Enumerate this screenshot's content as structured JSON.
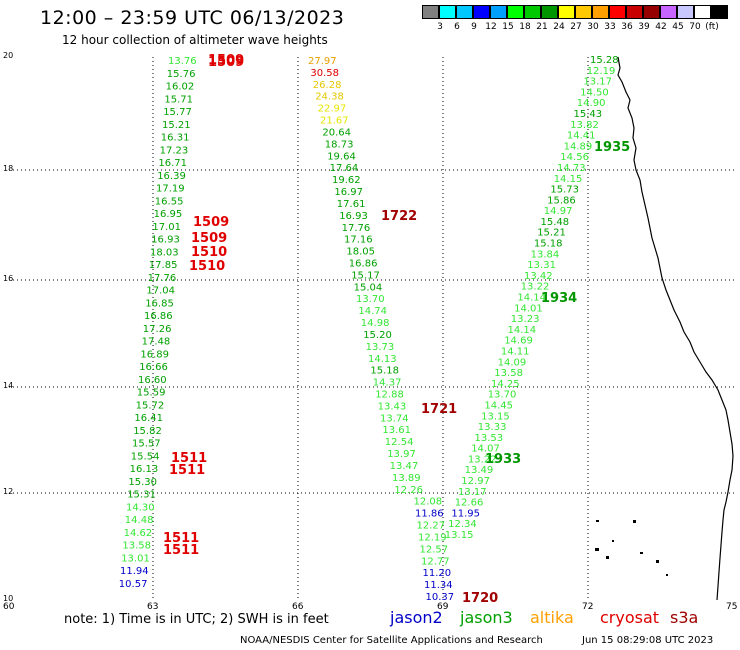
{
  "header": {
    "title": "12:00 – 23:59 UTC 06/13/2023",
    "subtitle": "12 hour collection of altimeter wave heights"
  },
  "legend": {
    "colors": [
      "#808080",
      "#00ffff",
      "#00c8ff",
      "#0000ff",
      "#00a0ff",
      "#00ff00",
      "#00c800",
      "#009600",
      "#ffff00",
      "#ffc800",
      "#ffa000",
      "#ff0000",
      "#c80000",
      "#960000",
      "#c864ff",
      "#c8c8ff",
      "#ffffff",
      "#000000"
    ],
    "labels": [
      "3",
      "6",
      "9",
      "12",
      "15",
      "18",
      "21",
      "24",
      "27",
      "30",
      "33",
      "36",
      "39",
      "42",
      "45",
      "70",
      "(ft)"
    ]
  },
  "axes": {
    "y_ticks": [
      "20",
      "18",
      "16",
      "14",
      "12",
      "10"
    ],
    "x_ticks": [
      "60",
      "63",
      "66",
      "69",
      "72",
      "75"
    ]
  },
  "footer": {
    "note": "note:  1) Time is in UTC;  2) SWH is in feet",
    "satellites": [
      {
        "name": "jason2",
        "color": "#0000c8"
      },
      {
        "name": "jason3",
        "color": "#00a000"
      },
      {
        "name": "altika",
        "color": "#ffa000"
      },
      {
        "name": "cryosat",
        "color": "#e00000"
      },
      {
        "name": "s3a",
        "color": "#a00000"
      }
    ],
    "credit": "NOAA/NESDIS Center for Satellite Applications and Research",
    "timestamp": "Jun 15 08:29:08 UTC 2023"
  },
  "map_data": {
    "type": "altimeter-swath-map",
    "track_a": [
      "13.76",
      "15.76",
      "16.02",
      "15.71",
      "15.77",
      "15.21",
      "16.31",
      "17.23",
      "16.71",
      "16.39",
      "17.19",
      "16.55",
      "16.95",
      "17.01",
      "16.93",
      "18.03",
      "17.85",
      "17.76",
      "17.04",
      "16.85",
      "16.86",
      "17.26",
      "17.48",
      "16.89",
      "16.66",
      "16.60",
      "15.59",
      "15.72",
      "16.41",
      "15.82",
      "15.57",
      "15.54",
      "16.13",
      "15.30",
      "15.31",
      "14.30",
      "14.48",
      "14.62",
      "13.58",
      "13.01",
      "11.94",
      "10.57"
    ],
    "track_a_times": [
      "1509",
      "1509",
      "1509",
      "1509",
      "1510",
      "1510",
      "1511",
      "1511",
      "1511",
      "1511"
    ],
    "track_b": [
      "27.97",
      "30.58",
      "26.28",
      "24.38",
      "22.97",
      "21.67",
      "20.64",
      "18.73",
      "19.64",
      "17.64",
      "19.62",
      "16.97",
      "17.61",
      "16.93",
      "17.76",
      "17.16",
      "18.05",
      "16.86",
      "15.17",
      "15.04",
      "13.70",
      "14.74",
      "14.98",
      "15.20",
      "13.73",
      "14.13",
      "15.18",
      "14.37",
      "12.88",
      "13.43",
      "13.74",
      "13.61",
      "12.54",
      "13.97",
      "13.47",
      "13.89",
      "12.26",
      "12.08",
      "11.86",
      "12.27",
      "12.19",
      "12.57",
      "12.77",
      "11.20",
      "11.34",
      "10.37"
    ],
    "track_b_times": [
      "1722",
      "1721",
      "1720"
    ],
    "track_c": [
      "15.28",
      "12.19",
      "13.17",
      "14.50",
      "14.90",
      "15.43",
      "13.82",
      "14.41",
      "14.89",
      "14.56",
      "14.73",
      "14.15",
      "15.73",
      "15.86",
      "14.97",
      "15.48",
      "15.21",
      "15.18",
      "13.84",
      "13.31",
      "13.42",
      "13.22",
      "14.14",
      "14.01",
      "13.23",
      "14.14",
      "14.69",
      "14.11",
      "14.09",
      "13.58",
      "14.25",
      "13.70",
      "14.45",
      "13.15",
      "13.33",
      "13.53",
      "14.07",
      "13.22",
      "13.49",
      "12.97",
      "13.17",
      "12.66",
      "11.95",
      "12.34",
      "13.15"
    ],
    "track_c_times": [
      "1935",
      "1934",
      "1933"
    ]
  }
}
